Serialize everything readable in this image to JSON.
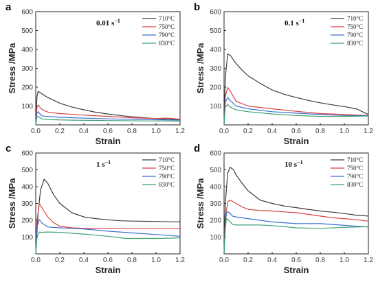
{
  "chart_data": [
    {
      "type": "line",
      "panel_label": "a",
      "strain_rate": "0.01 s",
      "strain_rate_exp": "−1",
      "xlabel": "Strain",
      "ylabel": "Stress /MPa",
      "xlim": [
        0,
        1.2
      ],
      "ylim": [
        0,
        600
      ],
      "xticks": [
        "0.0",
        "0.2",
        "0.4",
        "0.6",
        "0.8",
        "1.0",
        "1.2"
      ],
      "yticks": [
        "100",
        "200",
        "300",
        "400",
        "500",
        "600"
      ],
      "legend_position": "top-right",
      "series": [
        {
          "name": "710°C",
          "color": "#3a3a3a",
          "x": [
            0,
            0.01,
            0.02,
            0.05,
            0.1,
            0.2,
            0.3,
            0.4,
            0.5,
            0.6,
            0.7,
            0.8,
            0.9,
            1.0,
            1.1,
            1.2
          ],
          "y": [
            0,
            150,
            178,
            165,
            145,
            115,
            95,
            80,
            67,
            58,
            50,
            43,
            38,
            33,
            30,
            27
          ]
        },
        {
          "name": "750°C",
          "color": "#d94040",
          "x": [
            0,
            0.01,
            0.02,
            0.05,
            0.1,
            0.2,
            0.4,
            0.6,
            0.8,
            1.0,
            1.1,
            1.2
          ],
          "y": [
            0,
            95,
            105,
            82,
            68,
            60,
            52,
            45,
            38,
            34,
            36,
            30
          ]
        },
        {
          "name": "790°C",
          "color": "#3a6fd0",
          "x": [
            0,
            0.01,
            0.02,
            0.05,
            0.1,
            0.3,
            0.6,
            0.9,
            1.2
          ],
          "y": [
            0,
            65,
            70,
            48,
            44,
            38,
            32,
            28,
            25
          ]
        },
        {
          "name": "830°C",
          "color": "#3ca070",
          "x": [
            0,
            0.01,
            0.02,
            0.05,
            0.1,
            0.3,
            0.6,
            0.9,
            1.2
          ],
          "y": [
            0,
            42,
            45,
            32,
            28,
            25,
            23,
            21,
            20
          ]
        }
      ]
    },
    {
      "type": "line",
      "panel_label": "b",
      "strain_rate": "0.1 s",
      "strain_rate_exp": "−1",
      "xlabel": "Strain",
      "ylabel": "Stress /MPa",
      "xlim": [
        0,
        1.2
      ],
      "ylim": [
        0,
        600
      ],
      "xticks": [
        "0.0",
        "0.2",
        "0.4",
        "0.6",
        "0.8",
        "1.0",
        "1.2"
      ],
      "yticks": [
        "100",
        "200",
        "300",
        "400",
        "500",
        "600"
      ],
      "legend_position": "top-right",
      "series": [
        {
          "name": "710°C",
          "color": "#3a3a3a",
          "x": [
            0,
            0.01,
            0.03,
            0.05,
            0.1,
            0.15,
            0.2,
            0.3,
            0.4,
            0.5,
            0.6,
            0.7,
            0.8,
            0.9,
            1.0,
            1.1,
            1.15,
            1.2
          ],
          "y": [
            0,
            250,
            375,
            370,
            325,
            290,
            260,
            220,
            185,
            162,
            145,
            130,
            117,
            106,
            97,
            85,
            70,
            55
          ]
        },
        {
          "name": "750°C",
          "color": "#d94040",
          "x": [
            0,
            0.01,
            0.03,
            0.05,
            0.1,
            0.2,
            0.4,
            0.6,
            0.8,
            1.0,
            1.2
          ],
          "y": [
            0,
            150,
            198,
            180,
            125,
            100,
            85,
            72,
            60,
            55,
            50
          ]
        },
        {
          "name": "790°C",
          "color": "#3a6fd0",
          "x": [
            0,
            0.01,
            0.03,
            0.05,
            0.1,
            0.2,
            0.4,
            0.6,
            0.8,
            1.0,
            1.2
          ],
          "y": [
            0,
            120,
            145,
            130,
            100,
            85,
            70,
            62,
            55,
            50,
            48
          ]
        },
        {
          "name": "830°C",
          "color": "#3ca070",
          "x": [
            0,
            0.01,
            0.03,
            0.05,
            0.1,
            0.2,
            0.4,
            0.6,
            0.8,
            1.0,
            1.2
          ],
          "y": [
            0,
            95,
            108,
            95,
            80,
            70,
            58,
            50,
            45,
            45,
            47
          ]
        }
      ]
    },
    {
      "type": "line",
      "panel_label": "c",
      "strain_rate": "1 s",
      "strain_rate_exp": "−1",
      "xlabel": "Strain",
      "ylabel": "Stress /MPa",
      "xlim": [
        0,
        1.2
      ],
      "ylim": [
        0,
        600
      ],
      "xticks": [
        "0.0",
        "0.2",
        "0.4",
        "0.6",
        "0.8",
        "1.0",
        "1.2"
      ],
      "yticks": [
        "100",
        "200",
        "300",
        "400",
        "500",
        "600"
      ],
      "legend_position": "top-right",
      "series": [
        {
          "name": "710°C",
          "color": "#3a3a3a",
          "x": [
            0,
            0.02,
            0.04,
            0.07,
            0.1,
            0.15,
            0.2,
            0.3,
            0.4,
            0.5,
            0.6,
            0.7,
            0.8,
            0.9,
            1.0,
            1.1,
            1.2
          ],
          "y": [
            0,
            250,
            380,
            445,
            420,
            350,
            300,
            245,
            220,
            210,
            203,
            197,
            195,
            194,
            193,
            191,
            190
          ]
        },
        {
          "name": "750°C",
          "color": "#d94040",
          "x": [
            0,
            0.01,
            0.03,
            0.05,
            0.1,
            0.15,
            0.2,
            0.3,
            0.4,
            0.6,
            0.8,
            1.0,
            1.2
          ],
          "y": [
            0,
            200,
            300,
            275,
            220,
            185,
            165,
            155,
            152,
            150,
            150,
            150,
            150
          ]
        },
        {
          "name": "790°C",
          "color": "#3a6fd0",
          "x": [
            0,
            0.01,
            0.03,
            0.05,
            0.1,
            0.2,
            0.4,
            0.6,
            0.8,
            1.0,
            1.2
          ],
          "y": [
            0,
            160,
            205,
            185,
            160,
            155,
            148,
            135,
            125,
            115,
            105
          ]
        },
        {
          "name": "830°C",
          "color": "#3ca070",
          "x": [
            0,
            0.01,
            0.03,
            0.05,
            0.1,
            0.2,
            0.4,
            0.6,
            0.75,
            1.0,
            1.2
          ],
          "y": [
            0,
            100,
            130,
            128,
            130,
            128,
            118,
            105,
            92,
            92,
            95
          ]
        }
      ]
    },
    {
      "type": "line",
      "panel_label": "d",
      "strain_rate": "10 s",
      "strain_rate_exp": "−1",
      "xlabel": "Strain",
      "ylabel": "Stress /MPa",
      "xlim": [
        0,
        1.2
      ],
      "ylim": [
        0,
        600
      ],
      "xticks": [
        "0.0",
        "0.2",
        "0.4",
        "0.6",
        "0.8",
        "1.0",
        "1.2"
      ],
      "yticks": [
        "100",
        "200",
        "300",
        "400",
        "500",
        "600"
      ],
      "legend_position": "top-right",
      "series": [
        {
          "name": "710°C",
          "color": "#3a3a3a",
          "x": [
            0,
            0.01,
            0.03,
            0.05,
            0.08,
            0.1,
            0.15,
            0.2,
            0.3,
            0.4,
            0.5,
            0.6,
            0.7,
            0.8,
            0.9,
            1.0,
            1.1,
            1.2
          ],
          "y": [
            0,
            300,
            480,
            515,
            500,
            470,
            420,
            375,
            320,
            300,
            285,
            275,
            265,
            255,
            248,
            240,
            230,
            225
          ]
        },
        {
          "name": "750°C",
          "color": "#d94040",
          "x": [
            0,
            0.01,
            0.03,
            0.05,
            0.1,
            0.15,
            0.2,
            0.3,
            0.4,
            0.5,
            0.6,
            0.7,
            0.8,
            0.9,
            1.0,
            1.1,
            1.2
          ],
          "y": [
            0,
            200,
            310,
            320,
            300,
            280,
            265,
            258,
            255,
            250,
            245,
            235,
            225,
            215,
            210,
            203,
            195
          ]
        },
        {
          "name": "790°C",
          "color": "#3a6fd0",
          "x": [
            0,
            0.01,
            0.02,
            0.04,
            0.07,
            0.1,
            0.2,
            0.3,
            0.4,
            0.6,
            0.8,
            0.9,
            1.0,
            1.1,
            1.2
          ],
          "y": [
            0,
            180,
            245,
            250,
            225,
            220,
            210,
            200,
            190,
            180,
            180,
            175,
            170,
            165,
            160
          ]
        },
        {
          "name": "830°C",
          "color": "#3ca070",
          "x": [
            0,
            0.01,
            0.02,
            0.04,
            0.07,
            0.1,
            0.2,
            0.3,
            0.4,
            0.5,
            0.6,
            0.8,
            1.0,
            1.2
          ],
          "y": [
            0,
            150,
            210,
            200,
            175,
            172,
            172,
            172,
            168,
            162,
            155,
            152,
            158,
            162
          ]
        }
      ]
    }
  ]
}
